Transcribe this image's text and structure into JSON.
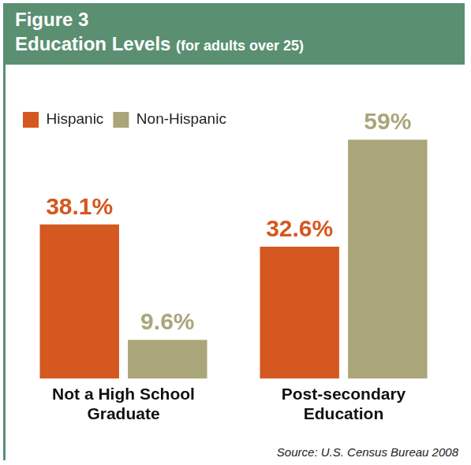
{
  "chart_data": {
    "type": "bar",
    "title": "Figure 3",
    "subtitle": "Education Levels",
    "annotations": [
      "(for adults over 25)",
      "Source: U.S. Census Bureau 2008"
    ],
    "categories": [
      "Not a High School Graduate",
      "Post-secondary Education"
    ],
    "series": [
      {
        "name": "Hispanic",
        "color": "#d4581f",
        "values": [
          38.1,
          32.6
        ],
        "value_labels": [
          "38.1%",
          "32.6%"
        ]
      },
      {
        "name": "Non-Hispanic",
        "color": "#aaa67a",
        "values": [
          9.6,
          59
        ],
        "value_labels": [
          "9.6%",
          "59%"
        ]
      }
    ],
    "data_labels": true,
    "tick_labels": "x",
    "grid": false,
    "legend": "upper left"
  }
}
